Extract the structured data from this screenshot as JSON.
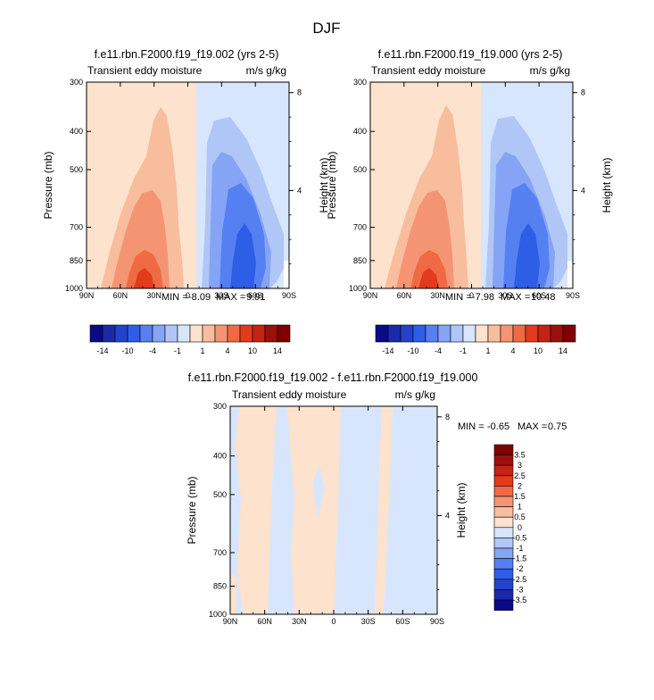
{
  "title": "DJF",
  "colors": {
    "palette": [
      "#0a0a87",
      "#1a2aa8",
      "#2443c8",
      "#2e5ee6",
      "#5580f2",
      "#86a4f5",
      "#b0c6f6",
      "#d7e6fc",
      "#fde2cd",
      "#f8bd9c",
      "#f59473",
      "#ef6a44",
      "#e23a1c",
      "#c32413",
      "#9c0f0a",
      "#800000"
    ],
    "axis": "#000000"
  },
  "colorbar_top": {
    "labels": [
      "-14",
      "-10",
      "-4",
      "-1",
      "1",
      "4",
      "10",
      "14"
    ]
  },
  "colorbar_diff": {
    "labels": [
      "3.5",
      "3",
      "2.5",
      "2",
      "1.5",
      "1",
      "0.5",
      "0",
      "-0.5",
      "-1",
      "-1.5",
      "-2",
      "-2.5",
      "-3",
      "-3.5"
    ]
  },
  "chart_data": [
    {
      "type": "heatmap",
      "title": "f.e11.rbn.F2000.f19_f19.002 (yrs 2-5)",
      "left_subtitle": "Transient eddy moisture",
      "right_subtitle": "m/s g/kg",
      "xlabel": "",
      "ylabel": "Pressure (mb)",
      "ylabel_right": "Height (km)",
      "x_ticks": [
        "90N",
        "60N",
        "30N",
        "0",
        "30S",
        "60S",
        "90S"
      ],
      "y_ticks": [
        "300",
        "400",
        "500",
        "700",
        "850",
        "1000"
      ],
      "y_right_ticks": [
        "8",
        "4"
      ],
      "xlim": [
        90,
        -90
      ],
      "ylim": [
        1000,
        300
      ],
      "yscale": "log",
      "min_label": "MIN =",
      "min_value": "-8.09",
      "max_label": "MAX =",
      "max_value": "9.91",
      "features": [
        {
          "lat": 35,
          "p": 960,
          "value": 9.91
        },
        {
          "lat": 30,
          "p": 650,
          "value": 5
        },
        {
          "lat": 38,
          "p": 420,
          "value": 1
        },
        {
          "lat": -45,
          "p": 900,
          "value": -8.09
        },
        {
          "lat": -42,
          "p": 560,
          "value": -4
        },
        {
          "lat": -40,
          "p": 380,
          "value": -1.5
        }
      ]
    },
    {
      "type": "heatmap",
      "title": "f.e11.rbn.F2000.f19_f19.000 (yrs 2-5)",
      "left_subtitle": "Transient eddy moisture",
      "right_subtitle": "m/s g/kg",
      "xlabel": "",
      "ylabel": "Pressure (mb)",
      "ylabel_right": "Height (km)",
      "x_ticks": [
        "90N",
        "60N",
        "30N",
        "0",
        "30S",
        "60S",
        "90S"
      ],
      "y_ticks": [
        "300",
        "400",
        "500",
        "700",
        "850",
        "1000"
      ],
      "y_right_ticks": [
        "8",
        "4"
      ],
      "xlim": [
        90,
        -90
      ],
      "ylim": [
        1000,
        300
      ],
      "yscale": "log",
      "min_label": "MIN =",
      "min_value": "-7.98",
      "max_label": "MAX =",
      "max_value": "10.48",
      "features": [
        {
          "lat": 35,
          "p": 960,
          "value": 10.48
        },
        {
          "lat": 30,
          "p": 650,
          "value": 5
        },
        {
          "lat": 38,
          "p": 420,
          "value": 1
        },
        {
          "lat": -45,
          "p": 900,
          "value": -7.98
        },
        {
          "lat": -42,
          "p": 560,
          "value": -4
        },
        {
          "lat": -40,
          "p": 380,
          "value": -1.5
        }
      ]
    },
    {
      "type": "heatmap",
      "title": "f.e11.rbn.F2000.f19_f19.002 - f.e11.rbn.F2000.f19_f19.000",
      "left_subtitle": "Transient eddy moisture",
      "right_subtitle": "m/s g/kg",
      "xlabel": "",
      "ylabel": "Pressure (mb)",
      "ylabel_right": "Height (km)",
      "x_ticks": [
        "90N",
        "60N",
        "30N",
        "0",
        "30S",
        "60S",
        "90S"
      ],
      "y_ticks": [
        "300",
        "400",
        "500",
        "700",
        "850",
        "1000"
      ],
      "y_right_ticks": [
        "8",
        "4"
      ],
      "xlim": [
        90,
        -90
      ],
      "ylim": [
        1000,
        300
      ],
      "yscale": "log",
      "min_label": "MIN =",
      "min_value": "-0.65",
      "max_label": "MAX =",
      "max_value": "0.75",
      "features": [
        {
          "lat": 90,
          "lat2": 80,
          "value": -0.5
        },
        {
          "lat": 80,
          "lat2": 62,
          "value": 0.5
        },
        {
          "lat": 62,
          "lat2": 48,
          "value": -0.5
        },
        {
          "lat": 48,
          "lat2": 12,
          "value": 0.5
        },
        {
          "lat": 12,
          "lat2": -10,
          "value": 0.5
        },
        {
          "lat": -10,
          "lat2": -40,
          "value": -0.5
        },
        {
          "lat": -40,
          "lat2": -55,
          "value": 0.5
        },
        {
          "lat": -55,
          "lat2": -90,
          "value": -0.5
        }
      ]
    }
  ]
}
